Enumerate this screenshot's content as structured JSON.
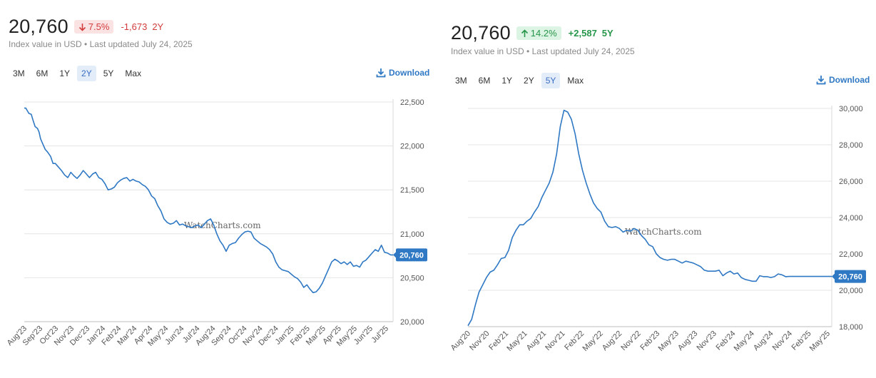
{
  "colors": {
    "line": "#2f78c4",
    "grid": "#e4e4e4",
    "axis": "#d8d8d8",
    "down": "#d23c3c",
    "up": "#26964a",
    "badge": "#2f78c4"
  },
  "panels": [
    {
      "value": "20,760",
      "pct_change": "7.5%",
      "direction": "down",
      "arrow_icon": "arrow-down-icon",
      "abs_change": "-1,673",
      "period": "2Y",
      "subtitle": "Index value in USD • Last updated July 24, 2025",
      "ranges": [
        "3M",
        "6M",
        "1Y",
        "2Y",
        "5Y",
        "Max"
      ],
      "active_range": "2Y",
      "download_label": "Download",
      "watermark": "WatchCharts.com",
      "last_label": "20,760"
    },
    {
      "value": "20,760",
      "pct_change": "14.2%",
      "direction": "up",
      "arrow_icon": "arrow-up-icon",
      "abs_change": "+2,587",
      "period": "5Y",
      "subtitle": "Index value in USD • Last updated July 24, 2025",
      "ranges": [
        "3M",
        "6M",
        "1Y",
        "2Y",
        "5Y",
        "Max"
      ],
      "active_range": "5Y",
      "download_label": "Download",
      "watermark": "WatchCharts.com",
      "last_label": "20,760"
    }
  ],
  "chart_data": [
    {
      "type": "line",
      "title": "",
      "xlabel": "",
      "ylabel": "",
      "ylim": [
        20000,
        22500
      ],
      "yticks": [
        20000,
        20500,
        21000,
        21500,
        22000,
        22500
      ],
      "ytick_labels": [
        "20,000",
        "20,500",
        "21,000",
        "21,500",
        "22,000",
        "22,500"
      ],
      "x_categories": [
        "Aug'23",
        "Sep'23",
        "Oct'23",
        "Nov'23",
        "Dec'23",
        "Jan'24",
        "Feb'24",
        "Mar'24",
        "Apr'24",
        "May'24",
        "Jun'24",
        "Jul'24",
        "Aug'24",
        "Sep'24",
        "Oct'24",
        "Nov'24",
        "Dec'24",
        "Jan'25",
        "Feb'25",
        "Mar'25",
        "Apr'25",
        "May'25",
        "Jun'25",
        "Jul'25"
      ],
      "x_range": [
        0,
        23.75
      ],
      "grid": "horizontal",
      "y_axis_position": "right",
      "series": [
        {
          "x": [
            0,
            0.1,
            0.3,
            0.45,
            0.55,
            0.7,
            0.85,
            0.95,
            1.05,
            1.2,
            1.35,
            1.5,
            1.7,
            1.85,
            2.0,
            2.2,
            2.4,
            2.6,
            2.8,
            3.0,
            3.2,
            3.4,
            3.6,
            3.8,
            4.0,
            4.2,
            4.4,
            4.6,
            4.8,
            5.0,
            5.2,
            5.4,
            5.6,
            5.8,
            6.0,
            6.2,
            6.4,
            6.6,
            6.8,
            7.0,
            7.2,
            7.4,
            7.6,
            7.8,
            8.0,
            8.2,
            8.4,
            8.6,
            8.8,
            9.0,
            9.2,
            9.4,
            9.6,
            9.8,
            10.0,
            10.2,
            10.4,
            10.6,
            10.8,
            11.0,
            11.2,
            11.4,
            11.6,
            11.8,
            12.0,
            12.2,
            12.4,
            12.6,
            12.8,
            13.0,
            13.2,
            13.4,
            13.6,
            13.8,
            14.0,
            14.2,
            14.4,
            14.6,
            14.8,
            15.0,
            15.2,
            15.4,
            15.6,
            15.8,
            16.0,
            16.2,
            16.4,
            16.6,
            16.8,
            17.0,
            17.2,
            17.4,
            17.6,
            17.8,
            18.0,
            18.2,
            18.4,
            18.6,
            18.8,
            19.0,
            19.2,
            19.4,
            19.6,
            19.8,
            20.0,
            20.2,
            20.4,
            20.6,
            20.8,
            21.0,
            21.2,
            21.4,
            21.6,
            21.8,
            22.0,
            22.2,
            22.4,
            22.6,
            22.8,
            23.0,
            23.2,
            23.4,
            23.6,
            23.75
          ],
          "values": [
            22430,
            22430,
            22370,
            22360,
            22300,
            22220,
            22200,
            22160,
            22080,
            22020,
            21960,
            21930,
            21880,
            21800,
            21800,
            21760,
            21720,
            21670,
            21640,
            21700,
            21660,
            21630,
            21670,
            21720,
            21680,
            21640,
            21680,
            21700,
            21640,
            21620,
            21570,
            21500,
            21510,
            21530,
            21580,
            21610,
            21630,
            21640,
            21600,
            21620,
            21600,
            21590,
            21560,
            21540,
            21500,
            21430,
            21400,
            21320,
            21260,
            21170,
            21130,
            21110,
            21120,
            21150,
            21100,
            21110,
            21090,
            21080,
            21070,
            21090,
            21100,
            21070,
            21110,
            21150,
            21170,
            21100,
            21000,
            20920,
            20870,
            20800,
            20870,
            20890,
            20900,
            20950,
            20990,
            21020,
            21030,
            21020,
            20950,
            20920,
            20890,
            20870,
            20850,
            20820,
            20770,
            20680,
            20620,
            20590,
            20580,
            20570,
            20540,
            20510,
            20490,
            20450,
            20390,
            20420,
            20370,
            20330,
            20340,
            20380,
            20440,
            20520,
            20600,
            20680,
            20710,
            20690,
            20660,
            20680,
            20650,
            20680,
            20630,
            20640,
            20620,
            20680,
            20700,
            20740,
            20780,
            20820,
            20800,
            20870,
            20790,
            20780,
            20760,
            20760
          ]
        }
      ],
      "last_value": 20760
    },
    {
      "type": "line",
      "title": "",
      "xlabel": "",
      "ylabel": "",
      "ylim": [
        18000,
        30000
      ],
      "yticks": [
        18000,
        20000,
        22000,
        24000,
        26000,
        28000,
        30000
      ],
      "ytick_labels": [
        "18,000",
        "20,000",
        "22,000",
        "24,000",
        "26,000",
        "28,000",
        "30,000"
      ],
      "x_categories": [
        "Aug'20",
        "Nov'20",
        "Feb'21",
        "May'21",
        "Aug'21",
        "Nov'21",
        "Feb'22",
        "May'22",
        "Aug'22",
        "Nov'22",
        "Feb'23",
        "May'23",
        "Aug'23",
        "Nov'23",
        "Feb'24",
        "May'24",
        "Aug'24",
        "Nov'24",
        "Feb'25",
        "May'25"
      ],
      "x_range": [
        0,
        19.7
      ],
      "grid": "horizontal",
      "y_axis_position": "right",
      "series": [
        {
          "x": [
            0,
            0.2,
            0.4,
            0.6,
            0.8,
            1.0,
            1.2,
            1.4,
            1.6,
            1.8,
            2.0,
            2.2,
            2.4,
            2.6,
            2.8,
            3.0,
            3.2,
            3.4,
            3.6,
            3.8,
            4.0,
            4.2,
            4.4,
            4.6,
            4.8,
            5.0,
            5.2,
            5.4,
            5.6,
            5.8,
            6.0,
            6.2,
            6.4,
            6.6,
            6.8,
            7.0,
            7.2,
            7.4,
            7.6,
            7.8,
            8.0,
            8.2,
            8.4,
            8.6,
            8.8,
            9.0,
            9.2,
            9.4,
            9.6,
            9.8,
            10.0,
            10.2,
            10.4,
            10.6,
            10.8,
            11.0,
            11.2,
            11.4,
            11.6,
            11.8,
            12.0,
            12.2,
            12.4,
            12.6,
            12.8,
            13.0,
            13.2,
            13.4,
            13.6,
            13.8,
            14.0,
            14.2,
            14.4,
            14.6,
            14.8,
            15.0,
            15.2,
            15.4,
            15.6,
            15.8,
            16.0,
            16.2,
            16.4,
            16.6,
            16.8,
            17.0,
            17.2,
            17.4,
            17.6,
            17.8,
            18.0,
            18.2,
            18.4,
            18.6,
            18.8,
            19.0,
            19.2,
            19.4,
            19.6,
            19.7
          ],
          "values": [
            18050,
            18400,
            19200,
            19900,
            20300,
            20700,
            21000,
            21100,
            21400,
            21750,
            21800,
            22200,
            22900,
            23300,
            23600,
            23600,
            23800,
            23950,
            24300,
            24600,
            25100,
            25500,
            25900,
            26500,
            27500,
            29000,
            29900,
            29800,
            29400,
            28600,
            27500,
            26600,
            25900,
            25300,
            24800,
            24500,
            24300,
            23800,
            23500,
            23450,
            23500,
            23400,
            23200,
            23300,
            23250,
            23400,
            23300,
            23000,
            22800,
            22500,
            22400,
            22000,
            21800,
            21700,
            21650,
            21700,
            21700,
            21600,
            21500,
            21600,
            21550,
            21500,
            21400,
            21300,
            21100,
            21050,
            21050,
            21050,
            21100,
            20800,
            20950,
            21050,
            20900,
            20950,
            20700,
            20600,
            20550,
            20500,
            20500,
            20800,
            20750,
            20750,
            20700,
            20750,
            20900,
            20850,
            20750,
            20760,
            20760,
            20760,
            20760,
            20760,
            20760,
            20760,
            20760,
            20760,
            20760,
            20760,
            20760,
            20760
          ]
        }
      ],
      "last_value": 20760
    }
  ]
}
